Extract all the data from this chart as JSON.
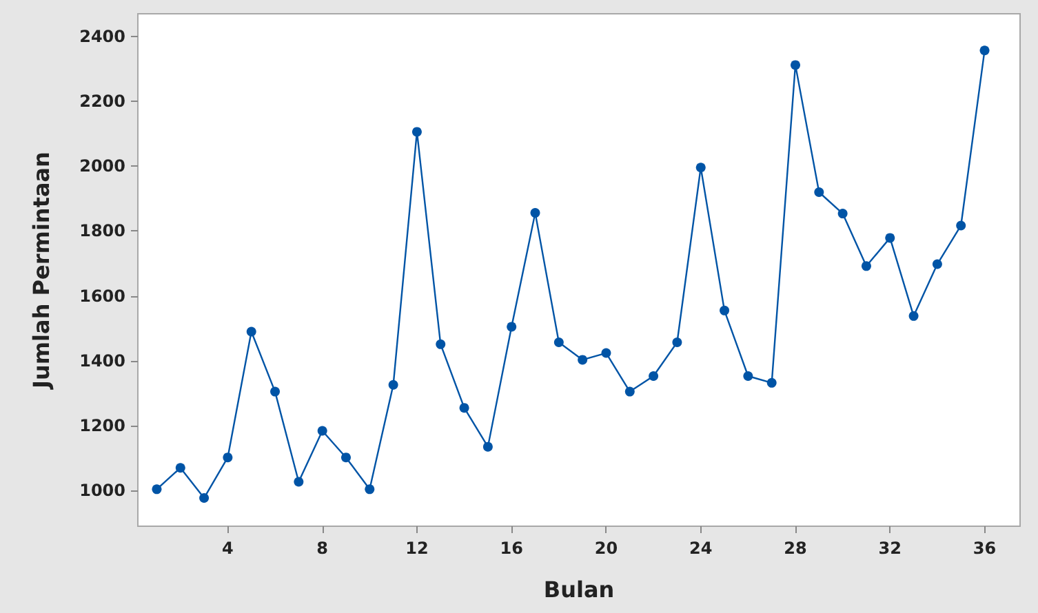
{
  "chart_data": {
    "type": "line",
    "xlabel": "Bulan",
    "ylabel": "Jumlah Permintaan",
    "x": [
      1,
      2,
      3,
      4,
      5,
      6,
      7,
      8,
      9,
      10,
      11,
      12,
      13,
      14,
      15,
      16,
      17,
      18,
      19,
      20,
      21,
      22,
      23,
      24,
      25,
      26,
      27,
      28,
      29,
      30,
      31,
      32,
      33,
      34,
      35,
      36
    ],
    "series": [
      {
        "color": "#0054a6",
        "values": [
          1004,
          1070,
          977,
          1102,
          1490,
          1305,
          1027,
          1184,
          1102,
          1004,
          1326,
          2106,
          1451,
          1255,
          1135,
          1505,
          1856,
          1457,
          1403,
          1424,
          1305,
          1353,
          1457,
          1996,
          1555,
          1353,
          1332,
          2312,
          1920,
          1854,
          1692,
          1779,
          1538,
          1698,
          1817,
          2357
        ]
      }
    ],
    "xlim": [
      0.2,
      37.5
    ],
    "xticks": [
      4,
      8,
      12,
      16,
      20,
      24,
      28,
      32,
      36
    ],
    "ylim": [
      890,
      2470
    ],
    "yticks": [
      1000,
      1200,
      1400,
      1600,
      1800,
      2000,
      2200,
      2400
    ],
    "grid": false,
    "marker": "circle",
    "line_style": "solid"
  }
}
